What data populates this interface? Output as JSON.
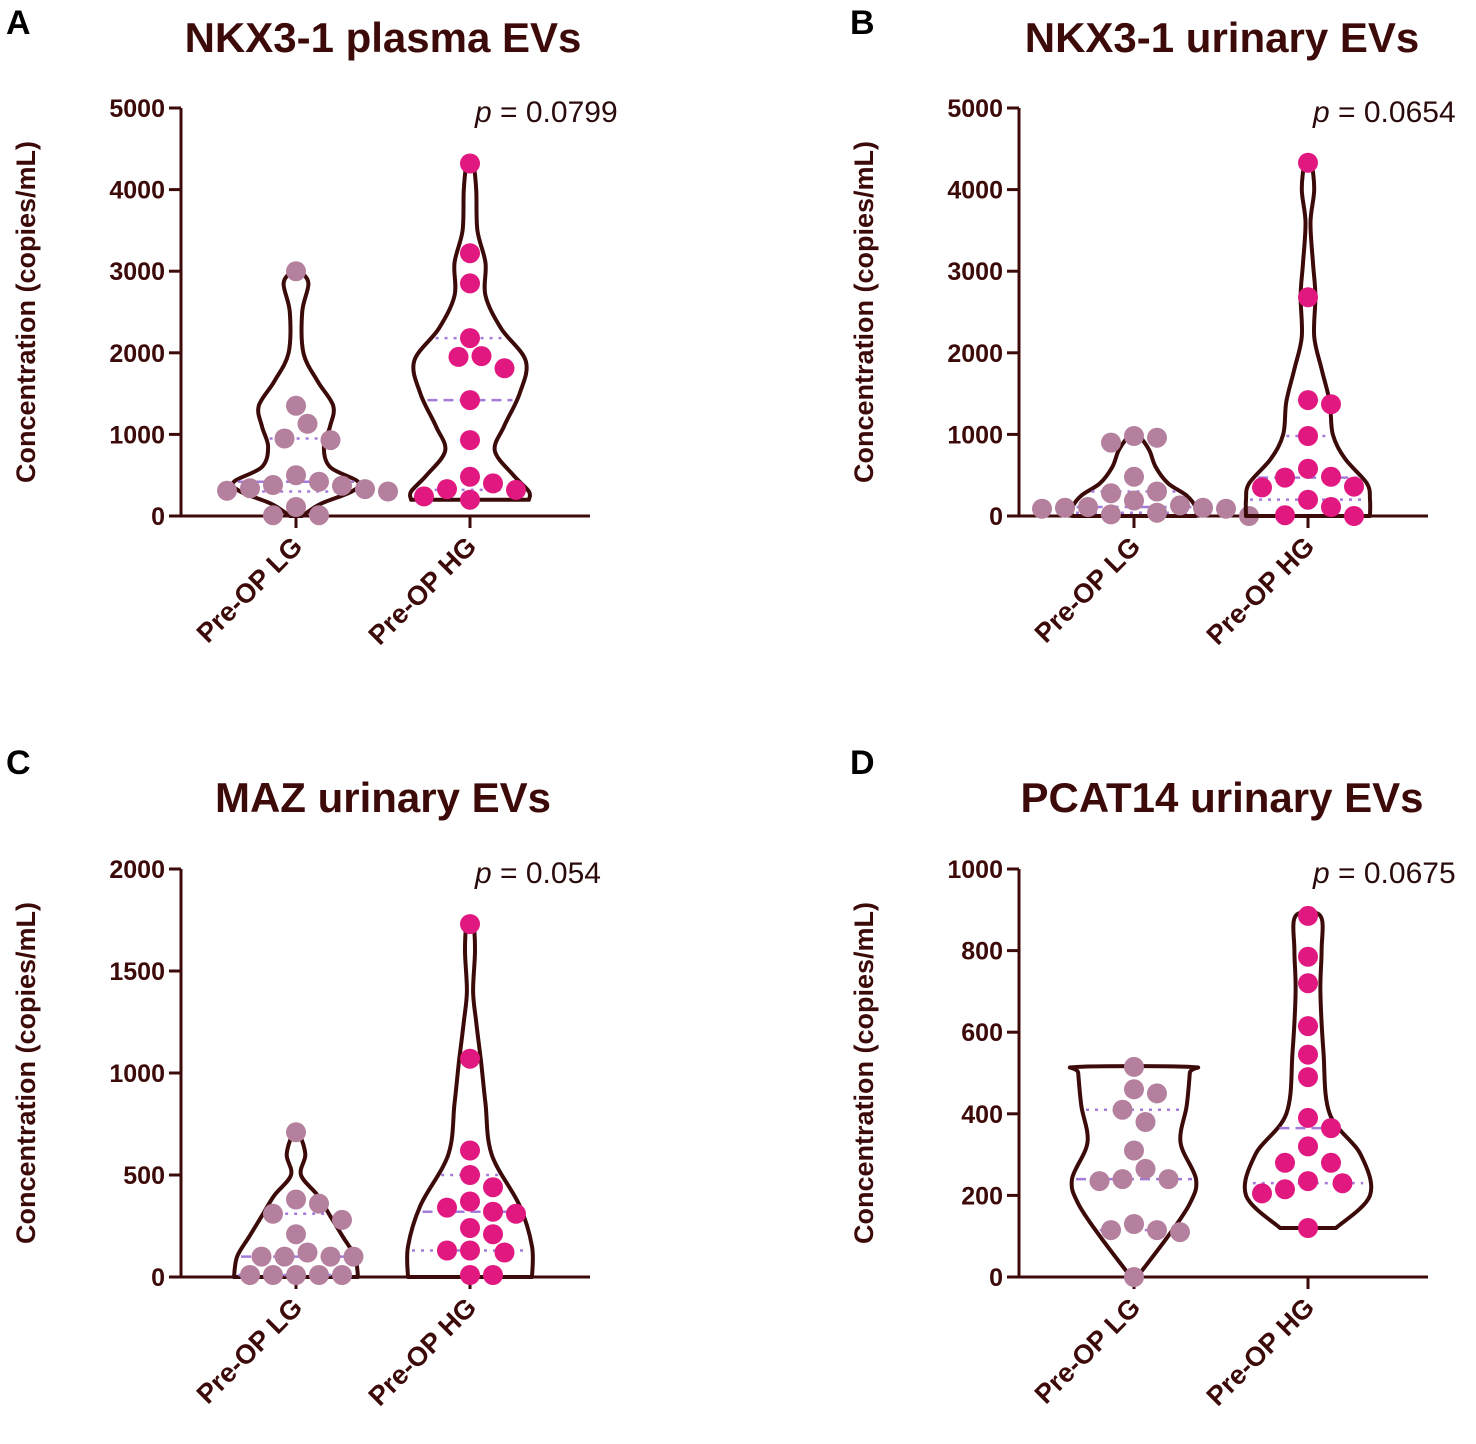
{
  "colors": {
    "text": "#3d0a0a",
    "lg": "#b4809e",
    "hg": "#e0187f",
    "quartile": "#a57bd9",
    "axis": "#3d0a0a"
  },
  "chart_data": [
    {
      "panel": "A",
      "type": "violin",
      "title": "NKX3-1 plasma  EVs",
      "ylabel": "Concentration (copies/mL)",
      "ylim": [
        0,
        5000
      ],
      "yticks": [
        "0",
        "1000",
        "2000",
        "3000",
        "4000",
        "5000"
      ],
      "p_label": "p",
      "p_text": " = 0.0799",
      "categories": [
        "Pre-OP LG",
        "Pre-OP HG"
      ],
      "series": [
        {
          "name": "Pre-OP LG",
          "color": "lg",
          "points": [
            3000,
            1350,
            1130,
            950,
            930,
            500,
            420,
            380,
            370,
            340,
            330,
            310,
            300,
            110,
            10,
            10
          ],
          "median": 420,
          "q1": 300,
          "q3": 950,
          "violin": [
            [
              0,
              0.1
            ],
            [
              150,
              0.4
            ],
            [
              300,
              0.9
            ],
            [
              420,
              1.0
            ],
            [
              600,
              0.55
            ],
            [
              850,
              0.45
            ],
            [
              1100,
              0.55
            ],
            [
              1350,
              0.6
            ],
            [
              1650,
              0.35
            ],
            [
              2000,
              0.12
            ],
            [
              2500,
              0.1
            ],
            [
              2850,
              0.2
            ],
            [
              3000,
              0.05
            ]
          ]
        },
        {
          "name": "Pre-OP HG",
          "color": "hg",
          "points": [
            4320,
            3220,
            2850,
            2180,
            1960,
            1950,
            1810,
            1420,
            930,
            480,
            400,
            330,
            320,
            240,
            200
          ],
          "median": 1420,
          "q1": 320,
          "q3": 2180,
          "violin": [
            [
              200,
              0.95
            ],
            [
              300,
              0.95
            ],
            [
              500,
              0.7
            ],
            [
              800,
              0.4
            ],
            [
              1100,
              0.55
            ],
            [
              1500,
              0.8
            ],
            [
              1900,
              0.9
            ],
            [
              2300,
              0.5
            ],
            [
              2700,
              0.25
            ],
            [
              3100,
              0.25
            ],
            [
              3500,
              0.12
            ],
            [
              4000,
              0.1
            ],
            [
              4320,
              0.05
            ]
          ]
        }
      ]
    },
    {
      "panel": "B",
      "type": "violin",
      "title": "NKX3-1 urinary EVs",
      "ylabel": "Concentration (copies/mL)",
      "ylim": [
        0,
        5000
      ],
      "yticks": [
        "0",
        "1000",
        "2000",
        "3000",
        "4000",
        "5000"
      ],
      "p_label": "p",
      "p_text": " = 0.0654",
      "categories": [
        "Pre-OP LG",
        "Pre-OP HG"
      ],
      "series": [
        {
          "name": "Pre-OP LG",
          "color": "lg",
          "points": [
            980,
            960,
            900,
            480,
            300,
            280,
            190,
            130,
            110,
            100,
            100,
            90,
            90,
            40,
            20,
            0
          ],
          "median": 110,
          "q1": 40,
          "q3": 300,
          "violin": [
            [
              0,
              1.0
            ],
            [
              100,
              1.0
            ],
            [
              250,
              0.85
            ],
            [
              400,
              0.55
            ],
            [
              600,
              0.35
            ],
            [
              800,
              0.25
            ],
            [
              950,
              0.12
            ],
            [
              990,
              0.05
            ]
          ]
        },
        {
          "name": "Pre-OP HG",
          "color": "hg",
          "points": [
            4330,
            2680,
            1420,
            1370,
            980,
            580,
            480,
            470,
            360,
            350,
            200,
            110,
            10,
            0
          ],
          "median": 470,
          "q1": 200,
          "q3": 980,
          "violin": [
            [
              0,
              1.0
            ],
            [
              200,
              1.0
            ],
            [
              400,
              0.95
            ],
            [
              700,
              0.6
            ],
            [
              1000,
              0.4
            ],
            [
              1400,
              0.35
            ],
            [
              1800,
              0.22
            ],
            [
              2200,
              0.1
            ],
            [
              2700,
              0.12
            ],
            [
              3100,
              0.08
            ],
            [
              3600,
              0.04
            ],
            [
              4000,
              0.1
            ],
            [
              4330,
              0.05
            ]
          ]
        }
      ]
    },
    {
      "panel": "C",
      "type": "violin",
      "title": "MAZ urinary  EVs",
      "ylabel": "Concentration (copies/mL)",
      "ylim": [
        0,
        2000
      ],
      "yticks": [
        "0",
        "500",
        "1000",
        "1500",
        "2000"
      ],
      "p_label": "p",
      "p_text": " = 0.054",
      "categories": [
        "Pre-OP LG",
        "Pre-OP HG"
      ],
      "series": [
        {
          "name": "Pre-OP LG",
          "color": "lg",
          "points": [
            710,
            380,
            360,
            310,
            280,
            210,
            120,
            100,
            100,
            100,
            100,
            10,
            10,
            10,
            10,
            10
          ],
          "median": 100,
          "q1": 10,
          "q3": 310,
          "violin": [
            [
              0,
              1.0
            ],
            [
              100,
              0.95
            ],
            [
              200,
              0.75
            ],
            [
              300,
              0.55
            ],
            [
              400,
              0.35
            ],
            [
              500,
              0.08
            ],
            [
              600,
              0.15
            ],
            [
              700,
              0.05
            ]
          ]
        },
        {
          "name": "Pre-OP HG",
          "color": "hg",
          "points": [
            1730,
            1070,
            620,
            500,
            440,
            370,
            340,
            320,
            310,
            240,
            210,
            130,
            130,
            120,
            10,
            10
          ],
          "median": 320,
          "q1": 130,
          "q3": 500,
          "violin": [
            [
              0,
              1.0
            ],
            [
              150,
              1.0
            ],
            [
              350,
              0.8
            ],
            [
              600,
              0.35
            ],
            [
              850,
              0.25
            ],
            [
              1050,
              0.18
            ],
            [
              1250,
              0.1
            ],
            [
              1400,
              0.05
            ],
            [
              1600,
              0.08
            ],
            [
              1730,
              0.05
            ]
          ]
        }
      ]
    },
    {
      "panel": "D",
      "type": "violin",
      "title": "PCAT14 urinary  EVs",
      "ylabel": "Concentration (copies/mL)",
      "ylim": [
        0,
        1000
      ],
      "yticks": [
        "0",
        "200",
        "400",
        "600",
        "800",
        "1000"
      ],
      "p_label": "p",
      "p_text": " = 0.0675",
      "categories": [
        "Pre-OP LG",
        "Pre-OP HG"
      ],
      "series": [
        {
          "name": "Pre-OP LG",
          "color": "lg",
          "points": [
            515,
            460,
            450,
            410,
            380,
            310,
            265,
            240,
            240,
            235,
            130,
            115,
            115,
            110,
            0
          ],
          "median": 240,
          "q1": 115,
          "q3": 410,
          "violin": [
            [
              0,
              0.05
            ],
            [
              100,
              0.55
            ],
            [
              180,
              0.9
            ],
            [
              240,
              1.0
            ],
            [
              330,
              0.75
            ],
            [
              420,
              0.85
            ],
            [
              500,
              0.9
            ],
            [
              515,
              0.9
            ]
          ]
        },
        {
          "name": "Pre-OP HG",
          "color": "hg",
          "points": [
            885,
            785,
            720,
            615,
            545,
            490,
            390,
            365,
            320,
            280,
            280,
            235,
            230,
            215,
            205,
            120
          ],
          "median": 365,
          "q1": 230,
          "q3": 615,
          "violin": [
            [
              120,
              0.45
            ],
            [
              200,
              1.0
            ],
            [
              300,
              0.85
            ],
            [
              400,
              0.35
            ],
            [
              550,
              0.25
            ],
            [
              700,
              0.2
            ],
            [
              800,
              0.22
            ],
            [
              885,
              0.2
            ]
          ]
        }
      ]
    }
  ]
}
